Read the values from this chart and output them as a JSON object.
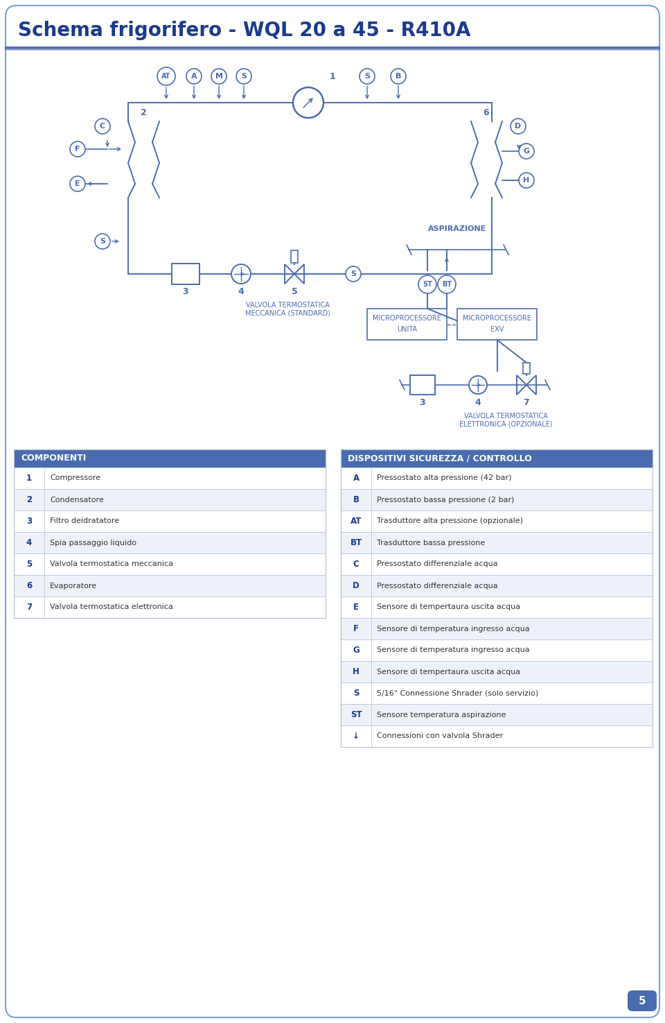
{
  "title": "Schema frigorifero - WQL 20 a 45 - R410A",
  "title_color": "#1a3a8c",
  "bg_color": "#ffffff",
  "border_color": "#7a9fd4",
  "page_number": "5",
  "componenti_header": "COMPONENTI",
  "dispositivi_header": "DISPOSITIVI SICUREZZA / CONTROLLO",
  "componenti": [
    [
      "1",
      "Compressore"
    ],
    [
      "2",
      "Condensatore"
    ],
    [
      "3",
      "Filtro deidratatore"
    ],
    [
      "4",
      "Spia passaggio liquido"
    ],
    [
      "5",
      "Valvola termostatica meccanica"
    ],
    [
      "6",
      "Evaporatore"
    ],
    [
      "7",
      "Valvola termostatica elettronica"
    ]
  ],
  "dispositivi": [
    [
      "A",
      "Pressostato alta pressione (42 bar)"
    ],
    [
      "B",
      "Pressostato bassa pressione (2 bar)"
    ],
    [
      "AT",
      "Trasduttore alta pressione (opzionale)"
    ],
    [
      "BT",
      "Trasduttore bassa pressione"
    ],
    [
      "C",
      "Pressostato differenziale acqua"
    ],
    [
      "D",
      "Pressostato differenziale acqua"
    ],
    [
      "E",
      "Sensore di tempertaura uscita acqua"
    ],
    [
      "F",
      "Sensore di temperatura ingresso acqua"
    ],
    [
      "G",
      "Sensore di temperatura ingresso acqua"
    ],
    [
      "H",
      "Sensore di tempertaura uscita acqua"
    ],
    [
      "S",
      "5/16\" Connessione Shrader (solo servizio)"
    ],
    [
      "ST",
      "Sensore temperatura aspirazione"
    ],
    [
      "↓",
      "Connessioni con valvola Shrader"
    ]
  ],
  "table_header_bg": "#4a6baf",
  "table_header_text": "#ffffff",
  "table_row_bg1": "#ffffff",
  "table_row_bg2": "#eef2f8",
  "table_border": "#b0bfd8",
  "table_key_color": "#1a3a8c",
  "table_text_color": "#333333",
  "dc": "#4a6baf"
}
